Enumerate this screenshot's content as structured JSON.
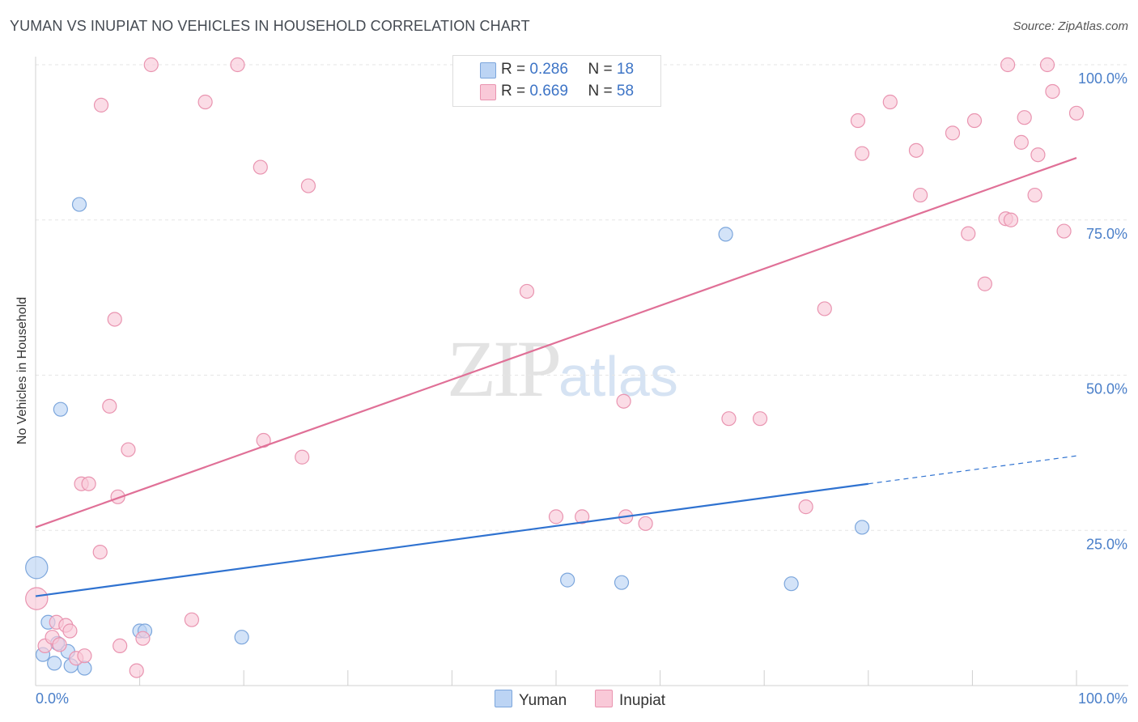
{
  "title": "YUMAN VS INUPIAT NO VEHICLES IN HOUSEHOLD CORRELATION CHART",
  "source": "Source: ZipAtlas.com",
  "watermark": {
    "part1": "ZIP",
    "part2": "atlas"
  },
  "legend": {
    "rows": [
      {
        "r_label": "R =",
        "r_value": "0.286",
        "n_label": "N =",
        "n_value": "18"
      },
      {
        "r_label": "R =",
        "r_value": "0.669",
        "n_label": "N =",
        "n_value": "58"
      }
    ]
  },
  "bottom_legend": {
    "yuman": "Yuman",
    "inupiat": "Inupiat"
  },
  "colors": {
    "yuman_fill": "#bcd4f4",
    "yuman_stroke": "#7ca6dc",
    "yuman_line": "#2f72d0",
    "inupiat_fill": "#f9c9d8",
    "inupiat_stroke": "#e994b0",
    "inupiat_line": "#e07097",
    "tick_text": "#4a7fc9"
  },
  "chart_data": {
    "type": "scatter",
    "title": "YUMAN VS INUPIAT NO VEHICLES IN HOUSEHOLD CORRELATION CHART",
    "xlabel": "",
    "ylabel": "No Vehicles in Household",
    "xlim": [
      0,
      100
    ],
    "ylim": [
      0,
      102
    ],
    "x_tick_labels": [
      "0.0%",
      "100.0%"
    ],
    "y_ticks": [
      {
        "value": 25,
        "label": "25.0%"
      },
      {
        "value": 50,
        "label": "50.0%"
      },
      {
        "value": 75,
        "label": "75.0%"
      },
      {
        "value": 100,
        "label": "100.0%"
      }
    ],
    "grid": true,
    "series": [
      {
        "name": "Yuman",
        "r": 0.286,
        "n": 18,
        "points": [
          [
            0.1,
            19.0,
            1.6
          ],
          [
            4.2,
            77.5,
            1
          ],
          [
            2.4,
            44.5,
            1
          ],
          [
            1.2,
            10.2,
            1
          ],
          [
            0.7,
            5.0,
            1
          ],
          [
            1.8,
            3.6,
            1
          ],
          [
            2.1,
            6.8,
            1
          ],
          [
            3.1,
            5.5,
            1
          ],
          [
            3.4,
            3.2,
            1
          ],
          [
            4.7,
            2.8,
            1
          ],
          [
            10.0,
            8.8,
            1
          ],
          [
            10.5,
            8.8,
            1
          ],
          [
            19.8,
            7.8,
            1
          ],
          [
            51.1,
            17.0,
            1
          ],
          [
            56.3,
            16.6,
            1
          ],
          [
            66.3,
            72.7,
            1
          ],
          [
            72.6,
            16.4,
            1
          ],
          [
            79.4,
            25.5,
            1
          ]
        ],
        "trend": {
          "x0": 0,
          "y0": 14.4,
          "x1": 80,
          "y1": 32.5,
          "dash_x1": 100,
          "dash_y1": 37.0
        }
      },
      {
        "name": "Inupiat",
        "r": 0.669,
        "n": 58,
        "points": [
          [
            0.1,
            14.0,
            1.6
          ],
          [
            0.9,
            6.4,
            1
          ],
          [
            1.6,
            7.8,
            1
          ],
          [
            2.0,
            10.2,
            1
          ],
          [
            2.3,
            6.6,
            1
          ],
          [
            2.9,
            9.7,
            1
          ],
          [
            3.3,
            8.8,
            1
          ],
          [
            3.9,
            4.4,
            1
          ],
          [
            4.4,
            32.5,
            1
          ],
          [
            4.7,
            4.8,
            1
          ],
          [
            5.1,
            32.5,
            1
          ],
          [
            6.2,
            21.5,
            1
          ],
          [
            6.3,
            93.5,
            1
          ],
          [
            7.1,
            45.0,
            1
          ],
          [
            7.6,
            59.0,
            1
          ],
          [
            7.9,
            30.4,
            1
          ],
          [
            8.1,
            6.4,
            1
          ],
          [
            8.9,
            38.0,
            1
          ],
          [
            9.7,
            2.4,
            1
          ],
          [
            10.3,
            7.6,
            1
          ],
          [
            11.1,
            100.0,
            1
          ],
          [
            15.0,
            10.6,
            1
          ],
          [
            16.3,
            94.0,
            1
          ],
          [
            19.4,
            100.0,
            1
          ],
          [
            21.6,
            83.5,
            1
          ],
          [
            21.9,
            39.5,
            1
          ],
          [
            25.6,
            36.8,
            1
          ],
          [
            26.2,
            80.5,
            1
          ],
          [
            47.2,
            63.5,
            1
          ],
          [
            50.0,
            27.2,
            1
          ],
          [
            52.5,
            27.2,
            1
          ],
          [
            56.5,
            45.8,
            1
          ],
          [
            56.7,
            27.2,
            1
          ],
          [
            58.6,
            26.1,
            1
          ],
          [
            66.6,
            43.0,
            1
          ],
          [
            69.6,
            43.0,
            1
          ],
          [
            74.0,
            28.8,
            1
          ],
          [
            75.8,
            60.7,
            1
          ],
          [
            79.0,
            91.0,
            1
          ],
          [
            79.4,
            85.7,
            1
          ],
          [
            82.1,
            94.0,
            1
          ],
          [
            84.6,
            86.2,
            1
          ],
          [
            85.0,
            79.0,
            1
          ],
          [
            88.1,
            89.0,
            1
          ],
          [
            89.6,
            72.8,
            1
          ],
          [
            90.2,
            91.0,
            1
          ],
          [
            91.2,
            64.7,
            1
          ],
          [
            93.2,
            75.2,
            1
          ],
          [
            93.4,
            100.0,
            1
          ],
          [
            93.7,
            75.0,
            1
          ],
          [
            94.7,
            87.5,
            1
          ],
          [
            95.0,
            91.5,
            1
          ],
          [
            96.0,
            79.0,
            1
          ],
          [
            96.3,
            85.5,
            1
          ],
          [
            97.2,
            100.0,
            1
          ],
          [
            97.7,
            95.7,
            1
          ],
          [
            98.8,
            73.2,
            1
          ],
          [
            100.0,
            92.2,
            1
          ]
        ],
        "trend": {
          "x0": 0,
          "y0": 25.5,
          "x1": 100,
          "y1": 85.0
        }
      }
    ]
  }
}
